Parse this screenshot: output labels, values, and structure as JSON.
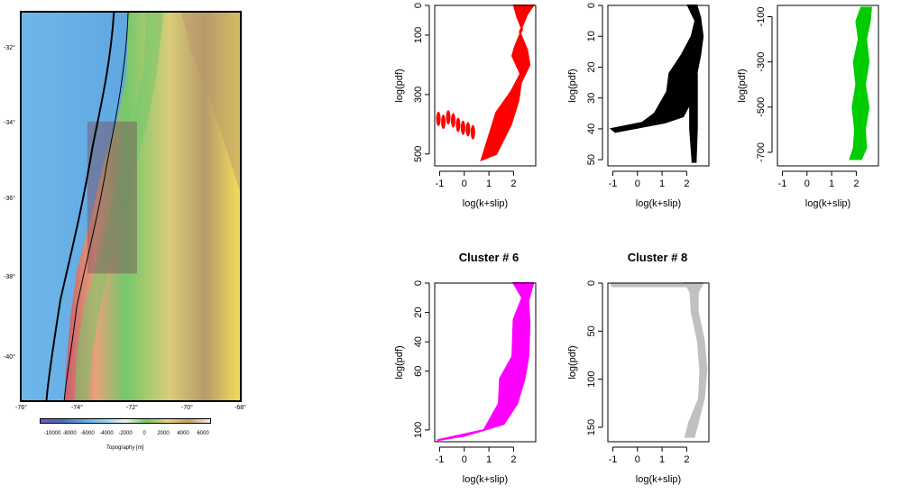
{
  "map": {
    "lon_ticks": [
      "-76°",
      "-74°",
      "-72°",
      "-70°",
      "-68°"
    ],
    "lat_ticks": [
      "-32°",
      "-34°",
      "-36°",
      "-38°",
      "-40°"
    ],
    "colorbar_labels": [
      "-10000",
      "-8000",
      "-6000",
      "-4000",
      "-2000",
      "0",
      "2000",
      "4000",
      "6000"
    ],
    "colorbar_title": "Topography [m]",
    "colors": {
      "ocean": "#5aa7e0",
      "trench": "#3d8fd6",
      "coast": "#c85a6a",
      "lowland": "#74c86a",
      "highland": "#e8d27a",
      "peaks": "#b89a6a"
    }
  },
  "chart_data": [
    {
      "type": "scatter",
      "title": "",
      "xlabel": "log(k+slip)",
      "ylabel": "log(pdf)",
      "color": "#ff0000",
      "x_ticks": [
        -1,
        0,
        1,
        2
      ],
      "y_ticks": [
        0,
        100,
        300,
        500
      ],
      "xlim": [
        -1.2,
        2.9
      ],
      "ylim": [
        0,
        540
      ],
      "y_reversed": true,
      "left_x": [
        2.02,
        2.15,
        2.35,
        2.05,
        1.95,
        2.28,
        1.9,
        1.3,
        0.7
      ],
      "left_y": [
        0,
        40,
        80,
        140,
        170,
        230,
        290,
        360,
        520
      ],
      "right_x": [
        2.8,
        2.55,
        2.25,
        2.55,
        2.65,
        2.3,
        2.2,
        1.9,
        1.3
      ],
      "right_y": [
        0,
        30,
        90,
        150,
        200,
        260,
        320,
        400,
        500
      ],
      "tail_x": [
        -1.05,
        -0.85,
        -0.65,
        -0.45,
        -0.25,
        -0.05,
        0.15,
        0.35
      ],
      "tail_y": [
        400,
        410,
        395,
        405,
        420,
        430,
        435,
        445
      ],
      "tail_len": [
        30,
        35,
        40,
        45,
        50,
        55,
        60,
        65
      ]
    },
    {
      "type": "scatter",
      "title": "",
      "xlabel": "log(k+slip)",
      "ylabel": "log(pdf)",
      "color": "#000000",
      "x_ticks": [
        -1,
        0,
        1,
        2
      ],
      "y_ticks": [
        0,
        10,
        20,
        30,
        40,
        50
      ],
      "xlim": [
        -1.2,
        2.9
      ],
      "ylim": [
        0,
        52
      ],
      "y_reversed": true,
      "left_x": [
        2.05,
        2.35,
        2.2,
        1.8,
        1.3,
        1.2,
        0.7,
        0.2,
        -1.05
      ],
      "left_y": [
        0,
        5,
        10,
        16,
        22,
        28,
        35,
        38,
        40
      ],
      "right_x": [
        2.4,
        2.55,
        2.65,
        2.55,
        2.4,
        2.25,
        1.85,
        1.1,
        -0.9
      ],
      "right_y": [
        0,
        4,
        10,
        16,
        22,
        30,
        36,
        38,
        41
      ],
      "spike_x": [
        2.1,
        2.45,
        2.45,
        2.4,
        2.2,
        2.1
      ],
      "spike_y": [
        22,
        22,
        40,
        51,
        51,
        40
      ]
    },
    {
      "type": "scatter",
      "title": "",
      "xlabel": "log(k+slip)",
      "ylabel": "log(pdf)",
      "color": "#00cc00",
      "x_ticks": [
        -1,
        0,
        1,
        2
      ],
      "y_ticks": [
        -100,
        -300,
        -500,
        -700
      ],
      "xlim": [
        -1.2,
        2.9
      ],
      "ylim": [
        -50,
        -760
      ],
      "y_reversed": false,
      "left_x": [
        2.2,
        2.0,
        2.1,
        1.9,
        2.0,
        1.85,
        1.95,
        1.9,
        1.75
      ],
      "left_y": [
        -60,
        -120,
        -200,
        -300,
        -400,
        -500,
        -600,
        -680,
        -730
      ],
      "right_x": [
        2.6,
        2.55,
        2.4,
        2.5,
        2.35,
        2.5,
        2.35,
        2.4,
        2.2
      ],
      "right_y": [
        -60,
        -120,
        -200,
        -300,
        -400,
        -500,
        -600,
        -680,
        -730
      ]
    },
    {
      "type": "scatter",
      "title": "Cluster # 6",
      "xlabel": "log(k+slip)",
      "ylabel": "log(pdf)",
      "color": "#ff00ff",
      "x_ticks": [
        -1,
        0,
        1,
        2
      ],
      "y_ticks": [
        0,
        20,
        40,
        60,
        100
      ],
      "xlim": [
        -1.2,
        2.9
      ],
      "ylim": [
        0,
        108
      ],
      "y_reversed": true,
      "left_x": [
        2.0,
        2.35,
        2.0,
        1.95,
        1.45,
        1.4,
        0.8,
        -1.1
      ],
      "left_y": [
        0,
        10,
        25,
        50,
        65,
        82,
        100,
        107
      ],
      "right_x": [
        2.8,
        2.6,
        2.65,
        2.6,
        2.45,
        2.15,
        1.6,
        0.0
      ],
      "right_y": [
        0,
        12,
        28,
        50,
        65,
        82,
        96,
        104
      ]
    },
    {
      "type": "scatter",
      "title": "Cluster # 8",
      "xlabel": "log(k+slip)",
      "ylabel": "log(pdf)",
      "color": "#c0c0c0",
      "x_ticks": [
        -1,
        0,
        1,
        2
      ],
      "y_ticks": [
        0,
        50,
        100,
        150
      ],
      "xlim": [
        -1.2,
        2.9
      ],
      "ylim": [
        0,
        165
      ],
      "y_reversed": true,
      "left_x": [
        1.95,
        2.15,
        2.2,
        2.45,
        2.55,
        2.5,
        2.1,
        1.95
      ],
      "left_y": [
        0,
        10,
        30,
        60,
        90,
        120,
        145,
        160
      ],
      "right_x": [
        2.65,
        2.45,
        2.45,
        2.7,
        2.8,
        2.7,
        2.45,
        2.3
      ],
      "right_y": [
        0,
        10,
        30,
        60,
        90,
        120,
        145,
        160
      ],
      "tail_x": [
        -1.0,
        1.95
      ],
      "tail_y": [
        2,
        2
      ]
    }
  ]
}
